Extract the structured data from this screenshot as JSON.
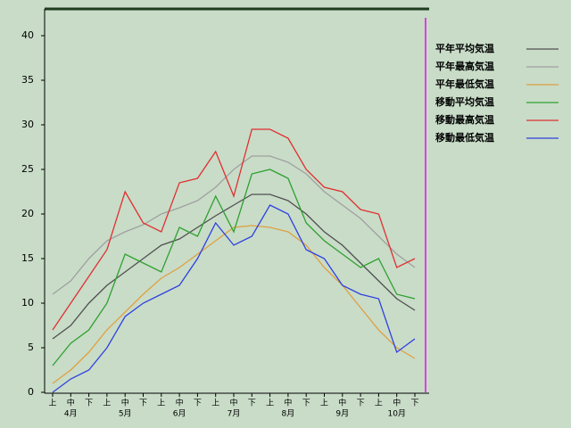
{
  "chart_data": {
    "type": "line",
    "categories": [
      "上",
      "中",
      "下",
      "上",
      "中",
      "下",
      "上",
      "中",
      "下",
      "上",
      "中",
      "下",
      "上",
      "中",
      "下",
      "上",
      "中",
      "下",
      "上",
      "中",
      "下"
    ],
    "months": [
      "4月",
      "5月",
      "6月",
      "7月",
      "8月",
      "9月",
      "10月"
    ],
    "series": [
      {
        "name": "平年平均気温",
        "color": "#505050",
        "values": [
          6,
          7.5,
          10,
          12,
          13.5,
          15,
          16.5,
          17.2,
          18.5,
          19.8,
          21,
          22.2,
          22.2,
          21.5,
          20,
          18,
          16.5,
          14.5,
          12.5,
          10.5,
          9.2
        ]
      },
      {
        "name": "平年最高気温",
        "color": "#a0a0a0",
        "values": [
          11,
          12.5,
          15,
          17,
          18,
          18.8,
          20,
          20.7,
          21.5,
          23,
          25,
          26.5,
          26.5,
          25.8,
          24.5,
          22.5,
          21,
          19.5,
          17.5,
          15.5,
          14
        ]
      },
      {
        "name": "平年最低気温",
        "color": "#e0a040",
        "values": [
          1,
          2.5,
          4.5,
          7,
          9,
          11,
          12.8,
          14,
          15.5,
          17,
          18.5,
          18.7,
          18.5,
          18,
          16.5,
          14,
          12,
          9.5,
          7,
          5,
          3.8
        ]
      },
      {
        "name": "移動平均気温",
        "color": "#30a030",
        "values": [
          3,
          5.5,
          7,
          10,
          15.5,
          14.5,
          13.5,
          18.5,
          17.5,
          22,
          18,
          24.5,
          25,
          24,
          19,
          17,
          15.5,
          14,
          15,
          11,
          10.5
        ]
      },
      {
        "name": "移動最高気温",
        "color": "#e03030",
        "values": [
          7,
          10,
          13,
          16,
          22.5,
          19,
          18,
          23.5,
          24,
          27,
          22,
          29.5,
          29.5,
          28.5,
          25,
          23,
          22.5,
          20.5,
          20,
          14,
          15
        ]
      },
      {
        "name": "移動最低気温",
        "color": "#3040e0",
        "values": [
          0,
          1.5,
          2.5,
          5,
          8.5,
          10,
          11,
          12,
          15,
          19,
          16.5,
          17.5,
          21,
          20,
          16,
          15,
          12,
          11,
          10.5,
          4.5,
          6
        ]
      }
    ],
    "ylim": [
      0,
      43
    ],
    "yticks": [
      0,
      5,
      10,
      15,
      20,
      25,
      30,
      35,
      40
    ]
  }
}
